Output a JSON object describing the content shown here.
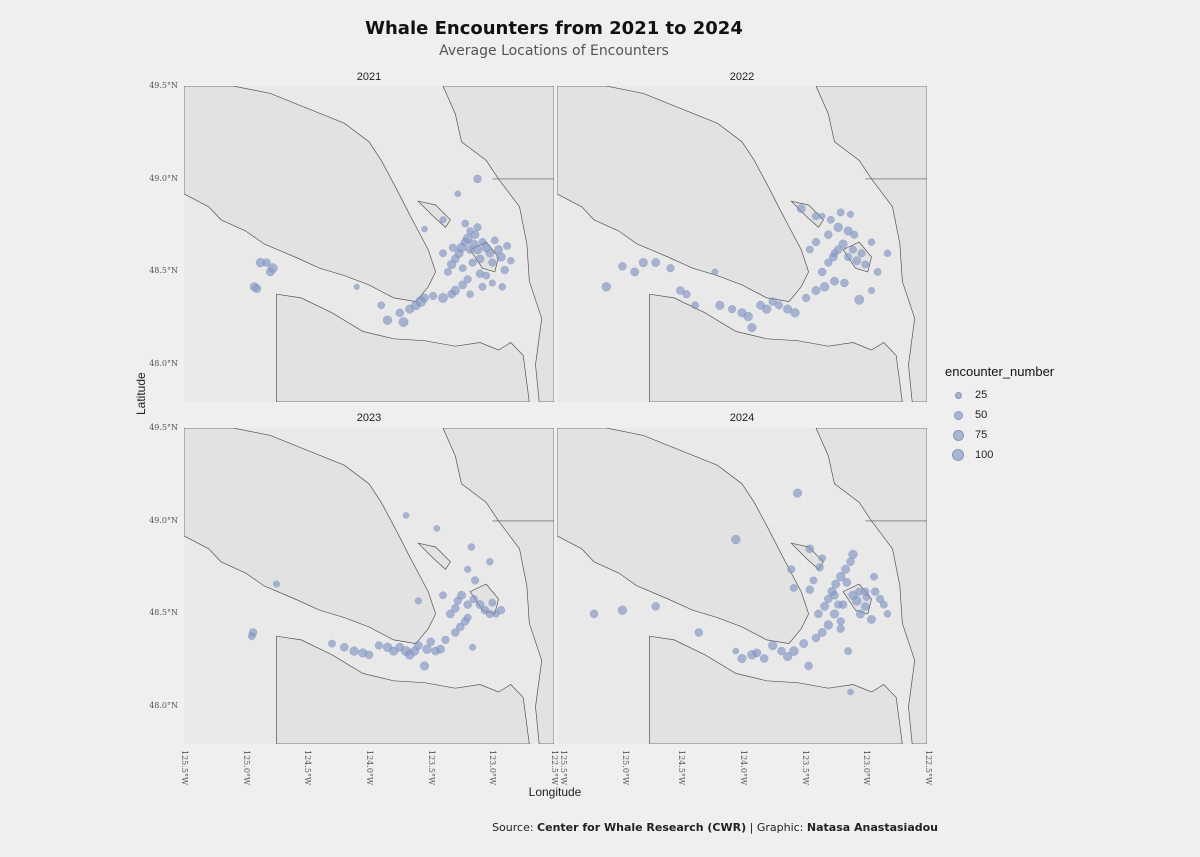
{
  "title": "Whale Encounters from 2021 to 2024",
  "subtitle": "Average Locations of Encounters",
  "caption": {
    "source_prefix": "Source: ",
    "source": "Center for Whale Research (CWR)",
    "separator": " | Graphic: ",
    "author": "Natasa Anastasiadou"
  },
  "colors": {
    "background": "#efefef",
    "panel": "#e3e3e3",
    "land": "#e2e2e2",
    "coastline": "#555555",
    "point": "#8296c3"
  },
  "chart_data": {
    "type": "scatter",
    "facet_by": "year",
    "xlabel": "Longitude",
    "ylabel": "Latitude",
    "xlim": [
      -125.5,
      -122.5
    ],
    "ylim": [
      47.8,
      49.5
    ],
    "x_ticks": [
      "125.5°W",
      "125.0°W",
      "124.5°W",
      "124.0°W",
      "123.5°W",
      "123.0°W",
      "122.5°W"
    ],
    "y_ticks": [
      "48.0°N",
      "48.5°N",
      "49.0°N",
      "49.5°N"
    ],
    "legend": {
      "title": "encounter_number",
      "values": [
        25,
        50,
        75,
        100
      ],
      "placement": "right"
    },
    "facets": [
      {
        "label": "2021",
        "points": [
          [
            -124.88,
            48.55,
            60
          ],
          [
            -124.83,
            48.55,
            45
          ],
          [
            -124.78,
            48.52,
            70
          ],
          [
            -124.8,
            48.5,
            50
          ],
          [
            -124.93,
            48.42,
            55
          ],
          [
            -124.91,
            48.41,
            50
          ],
          [
            -124.1,
            48.42,
            15
          ],
          [
            -123.9,
            48.32,
            35
          ],
          [
            -123.85,
            48.24,
            60
          ],
          [
            -123.75,
            48.28,
            45
          ],
          [
            -123.72,
            48.23,
            70
          ],
          [
            -123.67,
            48.3,
            55
          ],
          [
            -123.62,
            48.32,
            65
          ],
          [
            -123.58,
            48.34,
            85
          ],
          [
            -123.55,
            48.36,
            50
          ],
          [
            -123.48,
            48.37,
            40
          ],
          [
            -123.4,
            48.36,
            70
          ],
          [
            -123.33,
            48.38,
            45
          ],
          [
            -123.3,
            48.4,
            60
          ],
          [
            -123.24,
            48.43,
            50
          ],
          [
            -123.2,
            48.46,
            40
          ],
          [
            -123.18,
            48.38,
            30
          ],
          [
            -123.08,
            48.42,
            35
          ],
          [
            -123.0,
            48.44,
            25
          ],
          [
            -122.92,
            48.42,
            30
          ],
          [
            -123.36,
            48.5,
            35
          ],
          [
            -123.33,
            48.54,
            60
          ],
          [
            -123.3,
            48.57,
            45
          ],
          [
            -123.27,
            48.6,
            55
          ],
          [
            -123.25,
            48.63,
            70
          ],
          [
            -123.22,
            48.66,
            50
          ],
          [
            -123.2,
            48.68,
            65
          ],
          [
            -123.18,
            48.62,
            45
          ],
          [
            -123.15,
            48.65,
            55
          ],
          [
            -123.12,
            48.62,
            60
          ],
          [
            -123.1,
            48.57,
            50
          ],
          [
            -123.08,
            48.66,
            40
          ],
          [
            -123.05,
            48.63,
            55
          ],
          [
            -123.02,
            48.6,
            45
          ],
          [
            -123.0,
            48.55,
            40
          ],
          [
            -122.98,
            48.67,
            35
          ],
          [
            -122.95,
            48.62,
            50
          ],
          [
            -122.93,
            48.58,
            60
          ],
          [
            -122.9,
            48.51,
            45
          ],
          [
            -122.88,
            48.64,
            35
          ],
          [
            -122.85,
            48.56,
            30
          ],
          [
            -123.4,
            48.6,
            35
          ],
          [
            -123.32,
            48.63,
            40
          ],
          [
            -123.18,
            48.72,
            30
          ],
          [
            -123.12,
            48.74,
            40
          ],
          [
            -123.22,
            48.76,
            35
          ],
          [
            -123.4,
            48.78,
            25
          ],
          [
            -123.55,
            48.73,
            20
          ],
          [
            -123.28,
            48.92,
            20
          ],
          [
            -123.12,
            49.0,
            45
          ],
          [
            -123.14,
            48.7,
            45
          ],
          [
            -123.16,
            48.55,
            40
          ],
          [
            -123.24,
            48.52,
            35
          ],
          [
            -123.1,
            48.49,
            45
          ],
          [
            -123.05,
            48.48,
            35
          ]
        ]
      },
      {
        "label": "2022",
        "points": [
          [
            -125.1,
            48.42,
            60
          ],
          [
            -124.97,
            48.53,
            45
          ],
          [
            -124.87,
            48.5,
            50
          ],
          [
            -124.8,
            48.55,
            55
          ],
          [
            -124.7,
            48.55,
            50
          ],
          [
            -124.58,
            48.52,
            40
          ],
          [
            -124.5,
            48.4,
            45
          ],
          [
            -124.45,
            48.38,
            40
          ],
          [
            -124.38,
            48.32,
            35
          ],
          [
            -124.22,
            48.5,
            20
          ],
          [
            -124.18,
            48.32,
            55
          ],
          [
            -124.08,
            48.3,
            40
          ],
          [
            -124.0,
            48.28,
            55
          ],
          [
            -123.95,
            48.26,
            60
          ],
          [
            -123.92,
            48.2,
            55
          ],
          [
            -123.85,
            48.32,
            50
          ],
          [
            -123.8,
            48.3,
            60
          ],
          [
            -123.75,
            48.34,
            45
          ],
          [
            -123.7,
            48.32,
            40
          ],
          [
            -123.63,
            48.3,
            55
          ],
          [
            -123.57,
            48.28,
            60
          ],
          [
            -123.48,
            48.36,
            40
          ],
          [
            -123.4,
            48.4,
            55
          ],
          [
            -123.33,
            48.42,
            60
          ],
          [
            -123.25,
            48.45,
            50
          ],
          [
            -123.17,
            48.44,
            45
          ],
          [
            -123.05,
            48.35,
            70
          ],
          [
            -122.95,
            48.4,
            25
          ],
          [
            -123.35,
            48.5,
            45
          ],
          [
            -123.3,
            48.55,
            40
          ],
          [
            -123.26,
            48.58,
            50
          ],
          [
            -123.22,
            48.62,
            45
          ],
          [
            -123.18,
            48.65,
            55
          ],
          [
            -123.14,
            48.58,
            40
          ],
          [
            -123.1,
            48.62,
            35
          ],
          [
            -123.07,
            48.56,
            50
          ],
          [
            -123.03,
            48.6,
            40
          ],
          [
            -123.0,
            48.54,
            35
          ],
          [
            -122.95,
            48.66,
            30
          ],
          [
            -122.9,
            48.5,
            35
          ],
          [
            -122.82,
            48.6,
            30
          ],
          [
            -123.45,
            48.62,
            35
          ],
          [
            -123.4,
            48.66,
            40
          ],
          [
            -123.3,
            48.7,
            45
          ],
          [
            -123.22,
            48.74,
            60
          ],
          [
            -123.14,
            48.72,
            55
          ],
          [
            -123.28,
            48.78,
            35
          ],
          [
            -123.52,
            48.84,
            50
          ],
          [
            -123.4,
            48.8,
            40
          ],
          [
            -123.12,
            48.81,
            25
          ],
          [
            -123.35,
            48.8,
            20
          ],
          [
            -123.2,
            48.82,
            35
          ],
          [
            -123.25,
            48.6,
            35
          ],
          [
            -123.09,
            48.7,
            40
          ]
        ]
      },
      {
        "label": "2023",
        "points": [
          [
            -124.94,
            48.4,
            45
          ],
          [
            -124.95,
            48.38,
            35
          ],
          [
            -124.75,
            48.66,
            25
          ],
          [
            -124.3,
            48.34,
            35
          ],
          [
            -124.2,
            48.32,
            45
          ],
          [
            -124.12,
            48.3,
            60
          ],
          [
            -124.05,
            48.29,
            55
          ],
          [
            -124.0,
            48.28,
            45
          ],
          [
            -123.92,
            48.33,
            40
          ],
          [
            -123.85,
            48.32,
            60
          ],
          [
            -123.8,
            48.3,
            55
          ],
          [
            -123.75,
            48.32,
            50
          ],
          [
            -123.7,
            48.3,
            70
          ],
          [
            -123.67,
            48.28,
            65
          ],
          [
            -123.63,
            48.3,
            55
          ],
          [
            -123.6,
            48.33,
            50
          ],
          [
            -123.55,
            48.22,
            55
          ],
          [
            -123.53,
            48.31,
            60
          ],
          [
            -123.5,
            48.35,
            45
          ],
          [
            -123.46,
            48.3,
            50
          ],
          [
            -123.42,
            48.31,
            50
          ],
          [
            -123.38,
            48.36,
            40
          ],
          [
            -123.3,
            48.4,
            45
          ],
          [
            -123.26,
            48.43,
            45
          ],
          [
            -123.22,
            48.46,
            45
          ],
          [
            -123.16,
            48.32,
            25
          ],
          [
            -123.34,
            48.5,
            50
          ],
          [
            -123.3,
            48.53,
            45
          ],
          [
            -123.28,
            48.57,
            40
          ],
          [
            -123.25,
            48.6,
            50
          ],
          [
            -123.2,
            48.55,
            45
          ],
          [
            -123.15,
            48.58,
            40
          ],
          [
            -123.1,
            48.55,
            50
          ],
          [
            -123.06,
            48.52,
            45
          ],
          [
            -123.02,
            48.5,
            40
          ],
          [
            -123.0,
            48.56,
            35
          ],
          [
            -122.97,
            48.5,
            30
          ],
          [
            -122.93,
            48.52,
            45
          ],
          [
            -123.2,
            48.74,
            25
          ],
          [
            -123.17,
            48.86,
            30
          ],
          [
            -123.4,
            48.6,
            35
          ],
          [
            -123.6,
            48.57,
            25
          ],
          [
            -123.02,
            48.78,
            30
          ],
          [
            -123.7,
            49.03,
            20
          ],
          [
            -123.45,
            48.96,
            20
          ],
          [
            -123.14,
            48.68,
            40
          ],
          [
            -123.2,
            48.48,
            35
          ]
        ]
      },
      {
        "label": "2024",
        "points": [
          [
            -125.2,
            48.5,
            45
          ],
          [
            -124.97,
            48.52,
            60
          ],
          [
            -124.7,
            48.54,
            45
          ],
          [
            -124.35,
            48.4,
            45
          ],
          [
            -124.05,
            48.3,
            20
          ],
          [
            -124.0,
            48.26,
            55
          ],
          [
            -123.92,
            48.28,
            60
          ],
          [
            -123.88,
            48.29,
            50
          ],
          [
            -123.82,
            48.26,
            45
          ],
          [
            -123.75,
            48.33,
            60
          ],
          [
            -123.68,
            48.3,
            45
          ],
          [
            -123.63,
            48.27,
            55
          ],
          [
            -123.58,
            48.3,
            65
          ],
          [
            -123.5,
            48.34,
            50
          ],
          [
            -123.46,
            48.22,
            45
          ],
          [
            -123.4,
            48.37,
            45
          ],
          [
            -123.35,
            48.4,
            50
          ],
          [
            -123.3,
            48.44,
            60
          ],
          [
            -123.25,
            48.5,
            55
          ],
          [
            -123.2,
            48.42,
            40
          ],
          [
            -123.14,
            48.3,
            35
          ],
          [
            -123.1,
            48.6,
            60
          ],
          [
            -123.07,
            48.57,
            65
          ],
          [
            -123.04,
            48.5,
            55
          ],
          [
            -123.0,
            48.54,
            45
          ],
          [
            -122.95,
            48.47,
            50
          ],
          [
            -122.92,
            48.62,
            45
          ],
          [
            -122.88,
            48.58,
            40
          ],
          [
            -122.85,
            48.55,
            35
          ],
          [
            -122.82,
            48.5,
            30
          ],
          [
            -123.38,
            48.5,
            45
          ],
          [
            -123.33,
            48.54,
            50
          ],
          [
            -123.3,
            48.58,
            45
          ],
          [
            -123.27,
            48.62,
            55
          ],
          [
            -123.24,
            48.66,
            50
          ],
          [
            -123.2,
            48.7,
            60
          ],
          [
            -123.16,
            48.74,
            55
          ],
          [
            -123.12,
            48.78,
            45
          ],
          [
            -123.1,
            48.82,
            60
          ],
          [
            -123.15,
            48.67,
            50
          ],
          [
            -123.18,
            48.55,
            45
          ],
          [
            -123.22,
            48.55,
            40
          ],
          [
            -123.45,
            48.63,
            45
          ],
          [
            -123.42,
            48.68,
            35
          ],
          [
            -123.37,
            48.75,
            40
          ],
          [
            -123.45,
            48.85,
            45
          ],
          [
            -123.35,
            48.8,
            30
          ],
          [
            -123.58,
            48.64,
            35
          ],
          [
            -123.6,
            48.74,
            40
          ],
          [
            -123.55,
            49.15,
            55
          ],
          [
            -124.05,
            48.9,
            60
          ],
          [
            -123.25,
            48.6,
            45
          ],
          [
            -123.05,
            48.62,
            40
          ],
          [
            -122.99,
            48.59,
            35
          ],
          [
            -123.0,
            48.62,
            40
          ],
          [
            -122.93,
            48.7,
            35
          ],
          [
            -123.12,
            48.08,
            20
          ],
          [
            -123.2,
            48.46,
            40
          ]
        ]
      }
    ]
  }
}
